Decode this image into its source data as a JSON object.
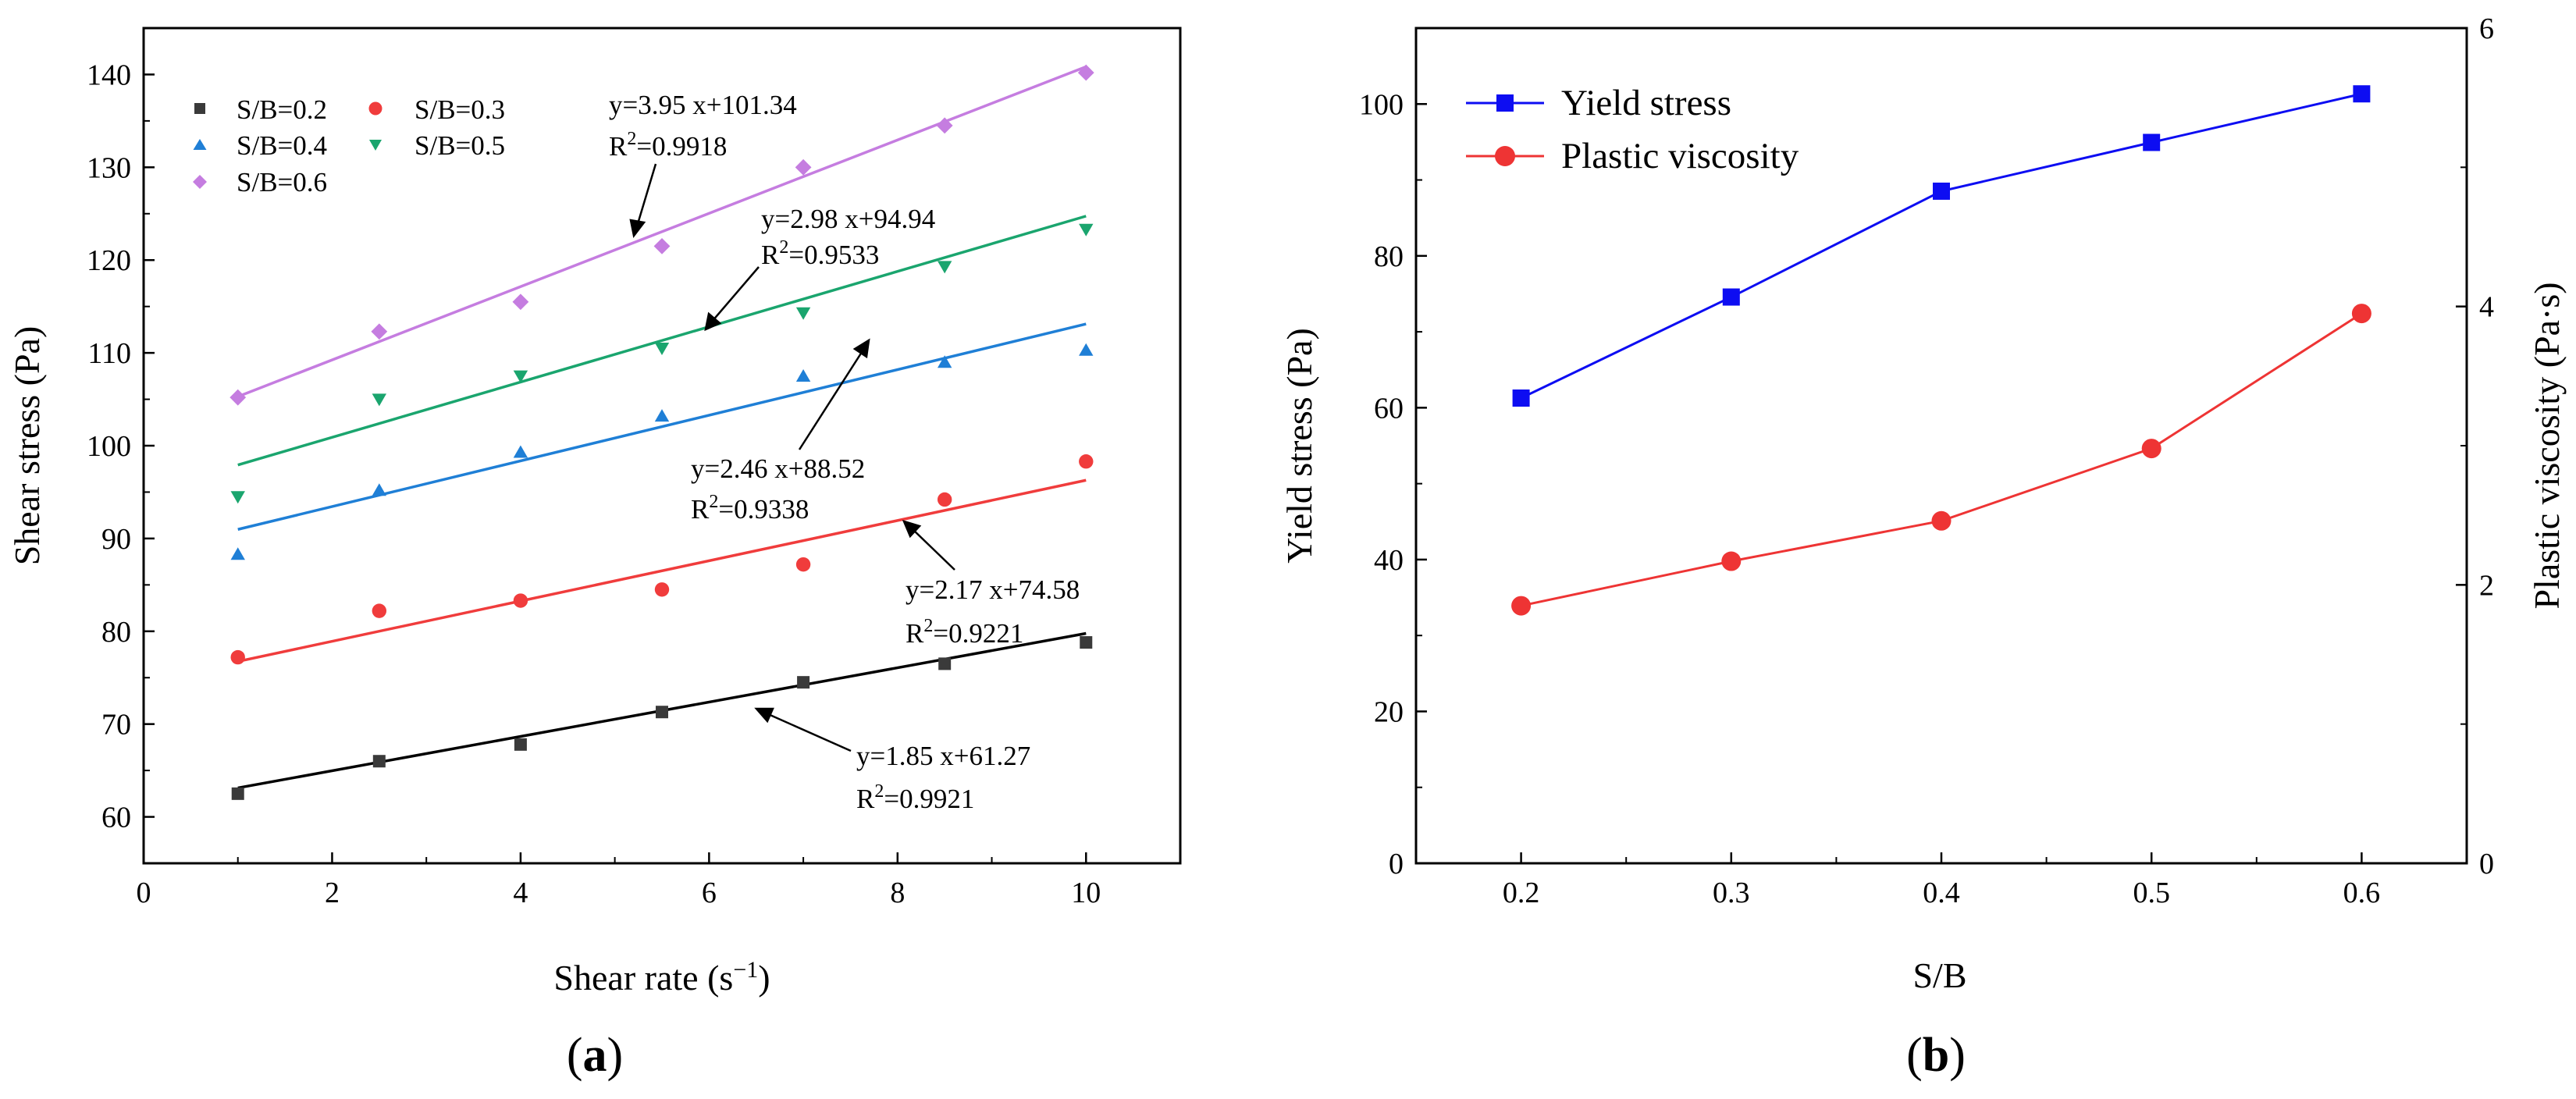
{
  "chart_data": [
    {
      "type": "scatter",
      "panel": "(a)",
      "panel_letter": "a",
      "xlabel": "Shear rate (s",
      "xlabel_sup": "−1",
      "xlabel_close": ")",
      "ylabel": "Shear stress (Pa)",
      "xlim": [
        0,
        11
      ],
      "ylim": [
        55,
        145
      ],
      "xticks": [
        0,
        2,
        4,
        6,
        8,
        10
      ],
      "yticks": [
        60,
        70,
        80,
        90,
        100,
        110,
        120,
        130,
        140
      ],
      "x": [
        1,
        2.5,
        4,
        5.5,
        7,
        8.5,
        10
      ],
      "series": [
        {
          "name": "S/B=0.2",
          "color": "#3a3a3a",
          "line_color": "#000000",
          "marker": "square",
          "values": [
            62.5,
            66,
            67.8,
            71.3,
            74.5,
            76.5,
            78.8
          ],
          "fit": {
            "slope": 1.85,
            "intercept": 61.27
          },
          "equation": "y=1.85 x+61.27",
          "r2_label": "R",
          "r2_sup": "2",
          "r2_value": "=0.9921"
        },
        {
          "name": "S/B=0.3",
          "color": "#f03c3c",
          "line_color": "#f03c3c",
          "marker": "circle",
          "values": [
            77.2,
            82.2,
            83.3,
            84.5,
            87.2,
            94.2,
            98.3
          ],
          "fit": {
            "slope": 2.17,
            "intercept": 74.58
          },
          "equation": "y=2.17 x+74.58",
          "r2_label": "R",
          "r2_sup": "2",
          "r2_value": "=0.9221"
        },
        {
          "name": "S/B=0.4",
          "color": "#1f7fd6",
          "line_color": "#1f7fd6",
          "marker": "triangle-up",
          "values": [
            88.3,
            95.2,
            99.3,
            103.2,
            107.5,
            109,
            110.3
          ],
          "fit": {
            "slope": 2.46,
            "intercept": 88.52
          },
          "equation": "y=2.46 x+88.52",
          "r2_label": "R",
          "r2_sup": "2",
          "r2_value": "=0.9338"
        },
        {
          "name": "S/B=0.5",
          "color": "#1aa56e",
          "line_color": "#1aa56e",
          "marker": "triangle-down",
          "values": [
            94.5,
            105,
            107.5,
            110.5,
            114.3,
            119.3,
            123.3
          ],
          "fit": {
            "slope": 2.98,
            "intercept": 94.94
          },
          "equation": "y=2.98 x+94.94",
          "r2_label": "R",
          "r2_sup": "2",
          "r2_value": "=0.9533"
        },
        {
          "name": "S/B=0.6",
          "color": "#c57de0",
          "line_color": "#c57de0",
          "marker": "diamond",
          "values": [
            105.2,
            112.3,
            115.5,
            121.5,
            130,
            134.5,
            140.2
          ],
          "fit": {
            "slope": 3.95,
            "intercept": 101.34
          },
          "equation": "y=3.95 x+101.34",
          "r2_label": "R",
          "r2_sup": "2",
          "r2_value": "=0.9918"
        }
      ]
    },
    {
      "type": "line",
      "panel": "(b)",
      "panel_letter": "b",
      "xlabel": "S/B",
      "ylabel": "Yield stress (Pa)",
      "y2label": "Plastic viscosity (Pa·s)",
      "xlim": [
        0.15,
        0.65
      ],
      "ylim": [
        0,
        110
      ],
      "y2lim": [
        0,
        6
      ],
      "xticks": [
        "0.2",
        "0.3",
        "0.4",
        "0.5",
        "0.6"
      ],
      "yticks": [
        0,
        20,
        40,
        60,
        80,
        100
      ],
      "y2ticks": [
        0,
        2,
        4,
        6
      ],
      "categories": [
        0.2,
        0.3,
        0.4,
        0.5,
        0.6
      ],
      "series": [
        {
          "name": "Yield stress",
          "axis": "left",
          "color": "#0d0df2",
          "marker": "square",
          "values": [
            61.27,
            74.58,
            88.52,
            94.94,
            101.34
          ]
        },
        {
          "name": "Plastic viscosity",
          "axis": "right",
          "color": "#ee3434",
          "marker": "circle",
          "values": [
            1.85,
            2.17,
            2.46,
            2.98,
            3.95
          ]
        }
      ]
    }
  ]
}
